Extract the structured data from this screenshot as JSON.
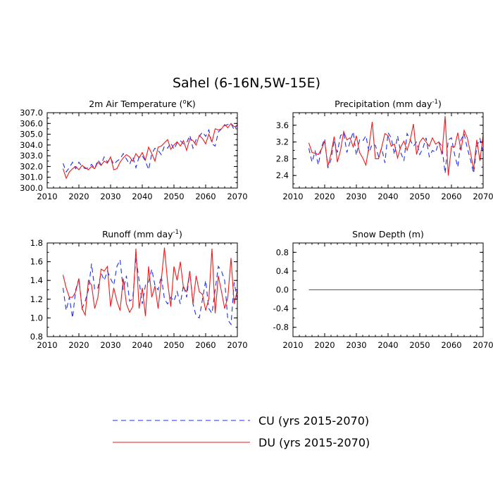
{
  "figure_title": "Sahel (6-16N,5W-15E)",
  "colors": {
    "cu": "#1f2ef0",
    "du": "#ee1a1a",
    "frame": "#000000"
  },
  "legend": [
    {
      "series": "CU",
      "label": "CU (yrs 2015-2070)",
      "color": "#1f2ef0",
      "style": "dashed"
    },
    {
      "series": "DU",
      "label": "DU (yrs 2015-2070)",
      "color": "#ee1a1a",
      "style": "solid"
    }
  ],
  "chart_data": [
    {
      "type": "line",
      "title_main": "2m Air Temperature (",
      "title_sup": "o",
      "title_tail": "K)",
      "xlim": [
        2010,
        2070
      ],
      "xticks": [
        "2010",
        "2020",
        "2030",
        "2040",
        "2050",
        "2060",
        "2070"
      ],
      "ylim": [
        300,
        307
      ],
      "yticks": [
        "300.0",
        "301.0",
        "302.0",
        "303.0",
        "304.0",
        "305.0",
        "306.0",
        "307.0"
      ],
      "x_start": 2015,
      "series": [
        {
          "name": "CU",
          "values": [
            302.3,
            301.5,
            301.9,
            302.4,
            301.8,
            302.4,
            302.0,
            301.8,
            301.9,
            302.2,
            301.8,
            302.6,
            302.2,
            302.9,
            302.4,
            302.8,
            302.2,
            302.5,
            302.7,
            303.2,
            302.7,
            302.2,
            302.9,
            301.9,
            302.9,
            303.0,
            302.5,
            301.7,
            303.2,
            303.7,
            303.5,
            303.1,
            303.9,
            303.7,
            304.2,
            303.6,
            304.2,
            304.4,
            304.1,
            304.2,
            304.9,
            303.7,
            304.5,
            304.8,
            305.2,
            304.8,
            305.4,
            304.1,
            303.9,
            305.2,
            305.5,
            305.8,
            305.9,
            306.0,
            305.4,
            305.9
          ]
        },
        {
          "name": "DU",
          "values": [
            301.8,
            300.9,
            301.5,
            301.8,
            302.0,
            301.7,
            302.1,
            301.9,
            301.7,
            302.0,
            301.8,
            302.4,
            302.1,
            302.5,
            302.3,
            302.9,
            301.7,
            301.8,
            302.4,
            302.8,
            303.1,
            302.9,
            302.5,
            303.2,
            302.8,
            303.3,
            302.6,
            303.8,
            303.2,
            302.5,
            303.8,
            303.9,
            304.2,
            304.5,
            303.6,
            304.0,
            304.3,
            303.9,
            304.4,
            303.5,
            304.6,
            304.4,
            304.0,
            304.9,
            304.6,
            304.1,
            305.0,
            304.3,
            305.5,
            305.4,
            305.5,
            305.9,
            305.6,
            306.0,
            305.7,
            305.8
          ]
        }
      ]
    },
    {
      "type": "line",
      "title_main": "Precipitation (mm day",
      "title_sup": "-1",
      "title_tail": ")",
      "xlim": [
        2010,
        2070
      ],
      "xticks": [
        "2010",
        "2020",
        "2030",
        "2040",
        "2050",
        "2060",
        "2070"
      ],
      "ylim": [
        2.1,
        3.9
      ],
      "yticks": [
        "2.4",
        "2.8",
        "3.2",
        "3.6"
      ],
      "x_start": 2015,
      "series": [
        {
          "name": "CU",
          "values": [
            3.05,
            2.72,
            2.98,
            2.65,
            3.08,
            3.28,
            2.58,
            2.78,
            3.25,
            2.95,
            3.35,
            3.42,
            2.95,
            3.2,
            3.45,
            2.88,
            3.25,
            3.22,
            3.35,
            2.95,
            3.15,
            3.12,
            2.85,
            3.05,
            2.7,
            3.42,
            3.3,
            2.9,
            3.35,
            2.95,
            2.75,
            3.4,
            3.25,
            3.1,
            3.2,
            2.9,
            3.05,
            3.3,
            2.85,
            3.0,
            2.95,
            3.2,
            3.1,
            2.45,
            3.25,
            3.3,
            2.9,
            2.6,
            3.25,
            3.4,
            3.05,
            2.78,
            2.45,
            3.1,
            3.28,
            2.95
          ]
        },
        {
          "name": "DU",
          "values": [
            3.18,
            2.95,
            2.93,
            2.9,
            3.03,
            3.22,
            2.62,
            2.92,
            3.33,
            2.72,
            3.0,
            3.45,
            3.25,
            3.3,
            3.08,
            3.35,
            2.95,
            2.82,
            2.65,
            3.1,
            3.68,
            2.8,
            2.8,
            3.08,
            3.4,
            3.35,
            3.1,
            3.15,
            2.82,
            3.08,
            3.22,
            3.0,
            3.25,
            3.63,
            2.9,
            3.2,
            3.3,
            3.2,
            3.1,
            3.3,
            3.15,
            3.2,
            2.9,
            3.82,
            2.4,
            3.1,
            3.08,
            3.42,
            3.0,
            3.48,
            3.3,
            2.95,
            2.55,
            3.25,
            2.75,
            3.38
          ]
        }
      ]
    },
    {
      "type": "line",
      "title_main": "Runoff (mm day",
      "title_sup": "-1",
      "title_tail": ")",
      "xlim": [
        2010,
        2070
      ],
      "xticks": [
        "2010",
        "2020",
        "2030",
        "2040",
        "2050",
        "2060",
        "2070"
      ],
      "ylim": [
        0.8,
        1.8
      ],
      "yticks": [
        "0.8",
        "1.0",
        "1.2",
        "1.4",
        "1.6",
        "1.8"
      ],
      "x_start": 2015,
      "series": [
        {
          "name": "CU",
          "values": [
            1.32,
            1.08,
            1.22,
            1.0,
            1.3,
            1.42,
            1.1,
            1.18,
            1.3,
            1.58,
            1.3,
            1.32,
            1.48,
            1.4,
            1.5,
            1.42,
            1.35,
            1.55,
            1.62,
            1.3,
            1.45,
            1.18,
            1.2,
            1.65,
            1.4,
            1.15,
            1.35,
            1.38,
            1.52,
            1.35,
            1.3,
            1.45,
            1.2,
            1.15,
            1.22,
            1.18,
            1.28,
            1.15,
            1.35,
            1.22,
            1.5,
            1.15,
            1.02,
            1.0,
            1.2,
            1.4,
            1.1,
            1.05,
            1.3,
            1.55,
            1.5,
            1.4,
            0.98,
            0.93,
            1.38,
            1.2
          ]
        },
        {
          "name": "DU",
          "values": [
            1.46,
            1.32,
            1.22,
            1.22,
            1.28,
            1.42,
            1.1,
            1.03,
            1.4,
            1.35,
            1.1,
            1.22,
            1.52,
            1.5,
            1.55,
            1.12,
            1.32,
            1.18,
            1.08,
            1.42,
            1.15,
            1.06,
            1.12,
            1.74,
            1.1,
            1.32,
            1.02,
            1.55,
            1.22,
            1.34,
            1.1,
            1.4,
            1.75,
            1.38,
            1.12,
            1.55,
            1.4,
            1.6,
            1.32,
            1.28,
            1.5,
            1.15,
            1.45,
            1.28,
            1.25,
            1.08,
            1.2,
            1.74,
            1.05,
            1.45,
            1.28,
            1.1,
            1.22,
            1.64,
            1.15,
            1.3
          ]
        }
      ]
    },
    {
      "type": "line",
      "title_main": "Snow Depth (m)",
      "title_sup": "",
      "title_tail": "",
      "xlim": [
        2010,
        2070
      ],
      "xticks": [
        "2010",
        "2020",
        "2030",
        "2040",
        "2050",
        "2060",
        "2070"
      ],
      "ylim": [
        -1.0,
        1.0
      ],
      "yticks": [
        "-0.8",
        "-0.4",
        "0.0",
        "0.4",
        "0.8"
      ],
      "x_start": 2015,
      "series": [
        {
          "name": "CU",
          "values": [
            0,
            0,
            0,
            0,
            0,
            0,
            0,
            0,
            0,
            0,
            0,
            0,
            0,
            0,
            0,
            0,
            0,
            0,
            0,
            0,
            0,
            0,
            0,
            0,
            0,
            0,
            0,
            0,
            0,
            0,
            0,
            0,
            0,
            0,
            0,
            0,
            0,
            0,
            0,
            0,
            0,
            0,
            0,
            0,
            0,
            0,
            0,
            0,
            0,
            0,
            0,
            0,
            0,
            0,
            0,
            0
          ]
        },
        {
          "name": "DU",
          "values": [
            0,
            0,
            0,
            0,
            0,
            0,
            0,
            0,
            0,
            0,
            0,
            0,
            0,
            0,
            0,
            0,
            0,
            0,
            0,
            0,
            0,
            0,
            0,
            0,
            0,
            0,
            0,
            0,
            0,
            0,
            0,
            0,
            0,
            0,
            0,
            0,
            0,
            0,
            0,
            0,
            0,
            0,
            0,
            0,
            0,
            0,
            0,
            0,
            0,
            0,
            0,
            0,
            0,
            0,
            0,
            0
          ]
        }
      ]
    }
  ]
}
